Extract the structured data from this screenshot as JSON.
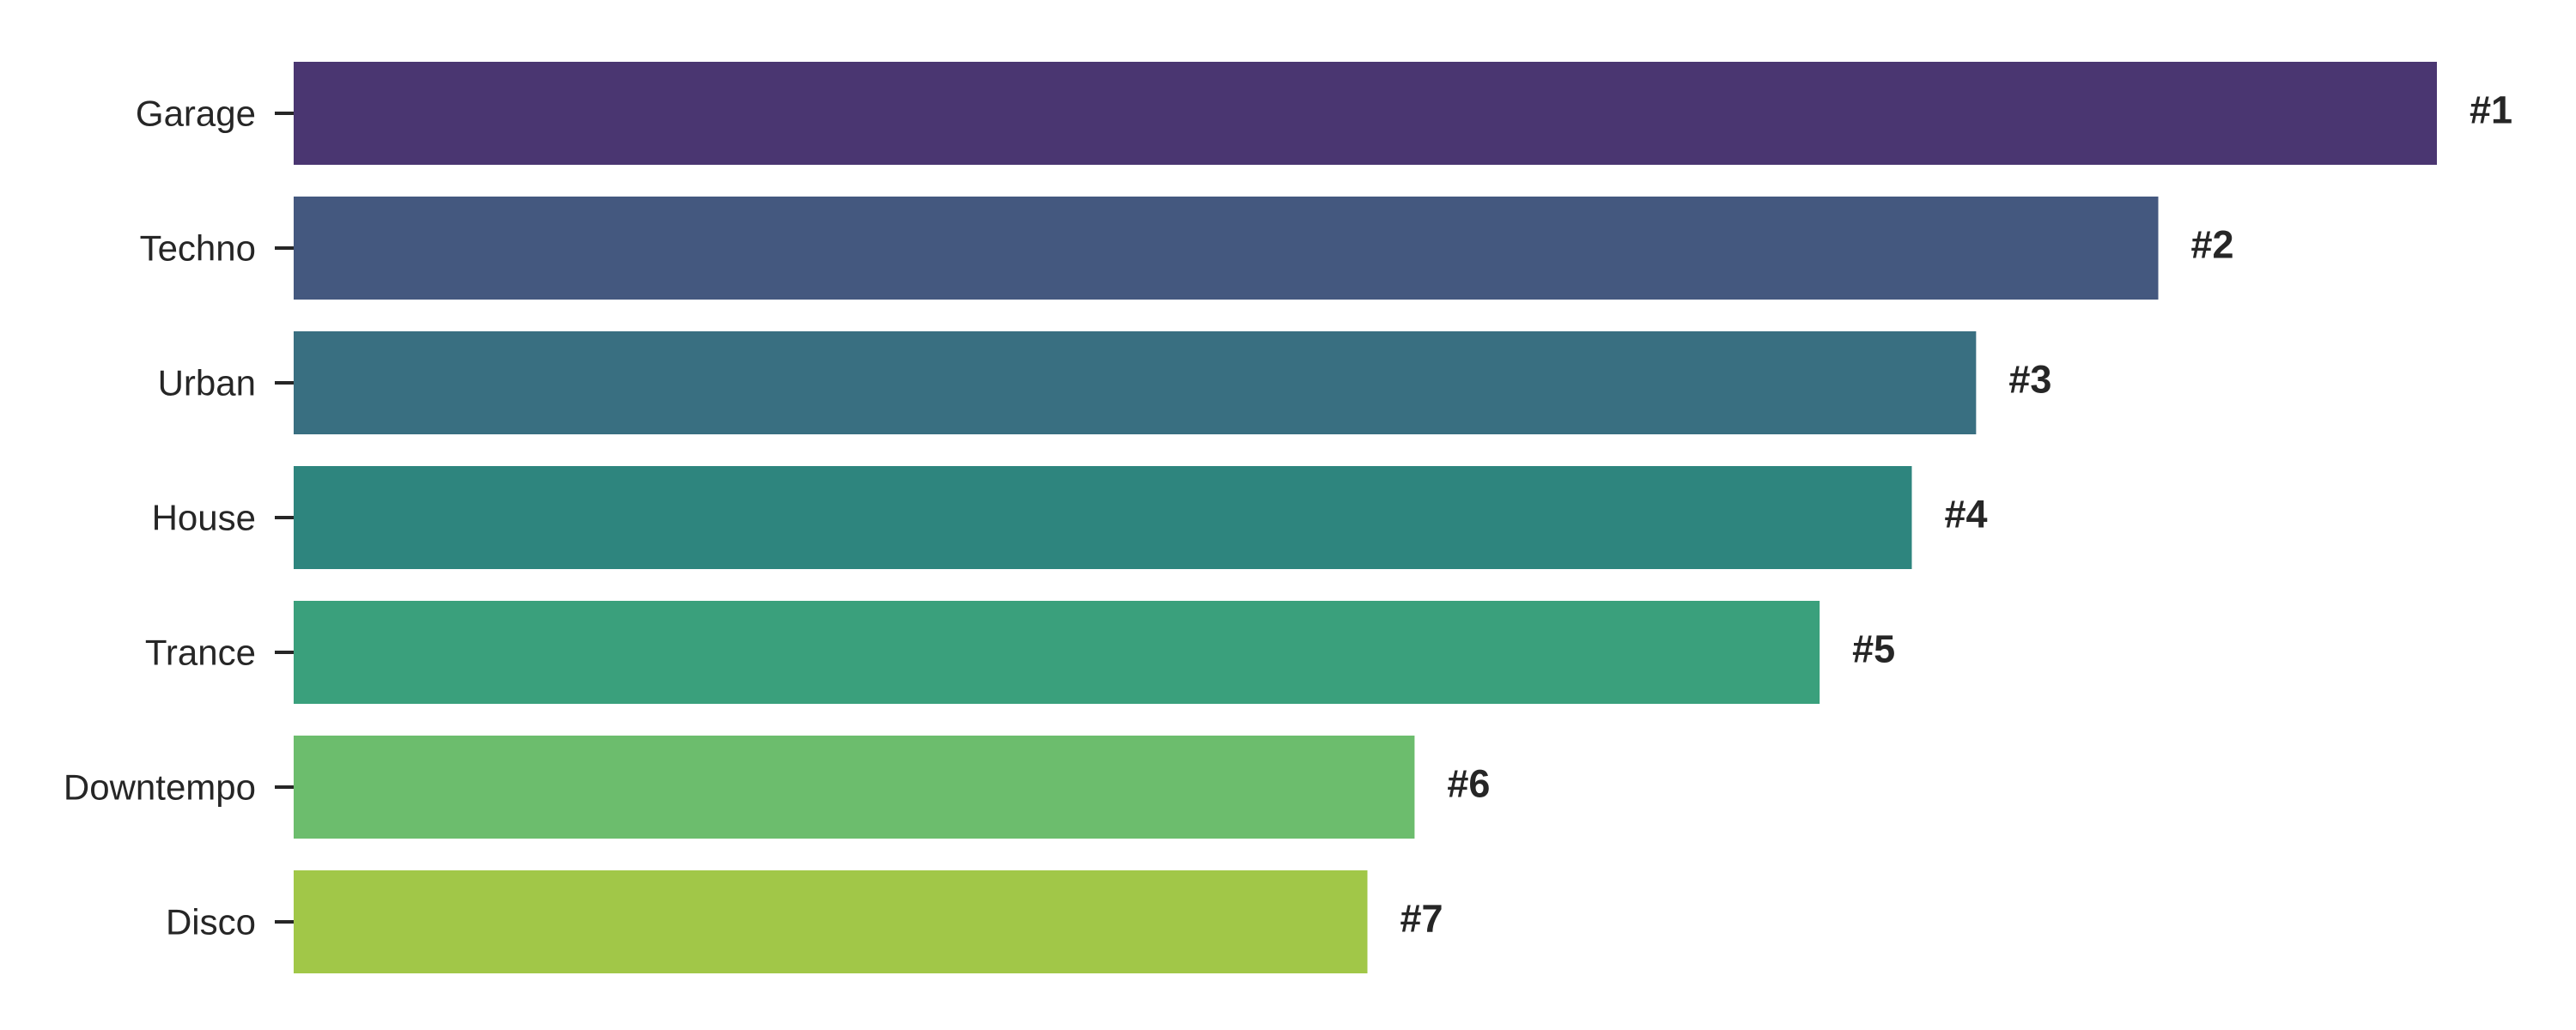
{
  "chart_data": {
    "type": "bar",
    "orientation": "horizontal",
    "title": "",
    "xlabel": "",
    "ylabel": "",
    "categories": [
      "Garage",
      "Techno",
      "Urban",
      "House",
      "Trance",
      "Downtempo",
      "Disco"
    ],
    "values": [
      100,
      87,
      78.5,
      75.5,
      71.2,
      52.3,
      50.1
    ],
    "data_labels": [
      "#1",
      "#2",
      "#3",
      "#4",
      "#5",
      "#6",
      "#7"
    ],
    "xlim": [
      0,
      100
    ],
    "colors": [
      "#4a3671",
      "#44587f",
      "#396f81",
      "#2e857e",
      "#3aa07c",
      "#6cbd6d",
      "#a1c748"
    ],
    "grid": false,
    "legend": "none",
    "x_axis_visible": false
  }
}
